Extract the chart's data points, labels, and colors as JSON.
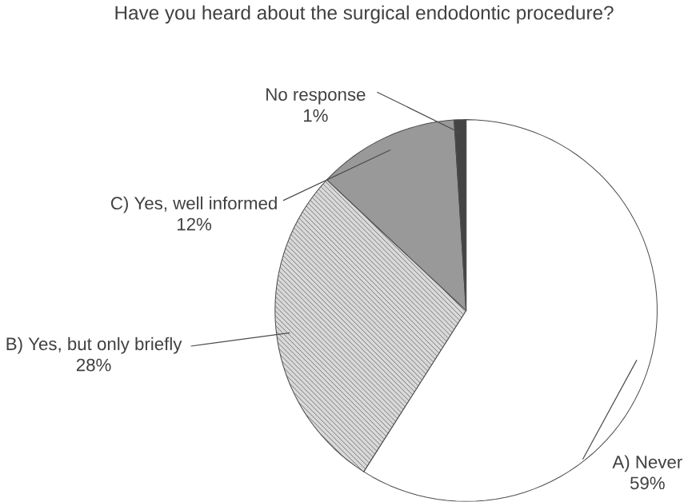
{
  "chart_data": {
    "type": "pie",
    "title": "Have you heard about the surgical endodontic procedure?",
    "categories": [
      "A) Never",
      "B) Yes, but only briefly",
      "C) Yes, well informed",
      "No response"
    ],
    "values": [
      59,
      28,
      12,
      1
    ],
    "colors": [
      "#ffffff",
      "#d9d9d9",
      "#999999",
      "#444444"
    ],
    "value_labels": [
      "59%",
      "28%",
      "12%",
      "1%"
    ]
  }
}
